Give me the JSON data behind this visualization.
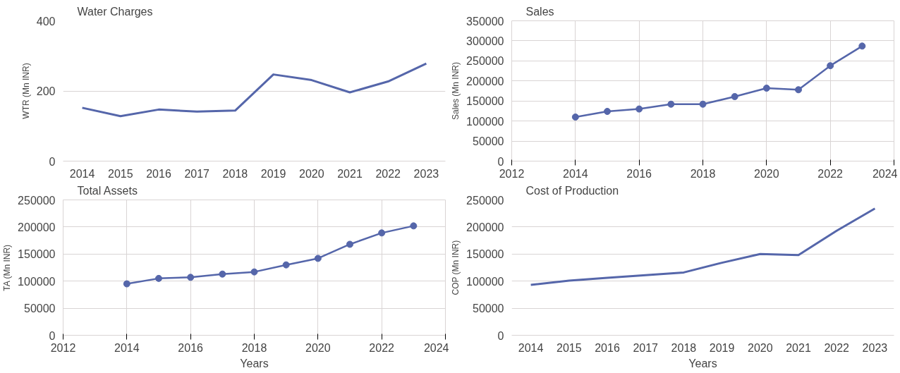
{
  "chart_data": [
    {
      "type": "line",
      "title": "Water Charges",
      "ylabel": "WTR (Mn INR)",
      "categories": [
        "2014",
        "2015",
        "2016",
        "2017",
        "2018",
        "2019",
        "2020",
        "2021",
        "2022",
        "2023"
      ],
      "series": [
        {
          "color": "#5566aa",
          "values": [
            152,
            128,
            147,
            141,
            144,
            247,
            231,
            196,
            227,
            278
          ]
        }
      ],
      "ylim": [
        0,
        400
      ],
      "yticks": [
        0,
        200,
        400
      ],
      "grid": "y",
      "line_style": "solid"
    },
    {
      "type": "line",
      "title": "Sales",
      "ylabel": "Sales (Mn INR)",
      "x": [
        2014,
        2015,
        2016,
        2017,
        2018,
        2019,
        2020,
        2021,
        2022,
        2023
      ],
      "series": [
        {
          "color": "#5566aa",
          "values": [
            110000,
            124000,
            130000,
            142000,
            142000,
            161000,
            182000,
            178000,
            238000,
            287000
          ]
        }
      ],
      "xlim": [
        2012,
        2024
      ],
      "xticks": [
        2012,
        2014,
        2016,
        2018,
        2020,
        2022,
        2024
      ],
      "ylim": [
        0,
        350000
      ],
      "yticks": [
        0,
        50000,
        100000,
        150000,
        200000,
        250000,
        300000,
        350000
      ],
      "grid": true,
      "marker": "circle",
      "line_style": "solid"
    },
    {
      "type": "line",
      "title": "Total Assets",
      "xlabel": "Years",
      "ylabel": "TA (Mn INR)",
      "x": [
        2014,
        2015,
        2016,
        2017,
        2018,
        2019,
        2020,
        2021,
        2022,
        2023
      ],
      "series": [
        {
          "color": "#5566aa",
          "values": [
            95000,
            105000,
            107000,
            113000,
            117000,
            130000,
            142000,
            168000,
            189000,
            202000
          ]
        }
      ],
      "xlim": [
        2012,
        2024
      ],
      "xticks": [
        2012,
        2014,
        2016,
        2018,
        2020,
        2022,
        2024
      ],
      "ylim": [
        0,
        250000
      ],
      "yticks": [
        0,
        50000,
        100000,
        150000,
        200000,
        250000
      ],
      "grid": true,
      "marker": "circle",
      "line_style": "solid"
    },
    {
      "type": "line",
      "title": "Cost of Production",
      "xlabel": "Years",
      "ylabel": "COP (Mn INR)",
      "categories": [
        "2014",
        "2015",
        "2016",
        "2017",
        "2018",
        "2019",
        "2020",
        "2021",
        "2022",
        "2023"
      ],
      "series": [
        {
          "color": "#5566aa",
          "values": [
            93000,
            101000,
            106000,
            111000,
            116000,
            134000,
            150000,
            148000,
            193000,
            234000
          ]
        }
      ],
      "ylim": [
        0,
        250000
      ],
      "yticks": [
        0,
        50000,
        100000,
        150000,
        200000,
        250000
      ],
      "grid": "y",
      "line_style": "solid"
    }
  ]
}
